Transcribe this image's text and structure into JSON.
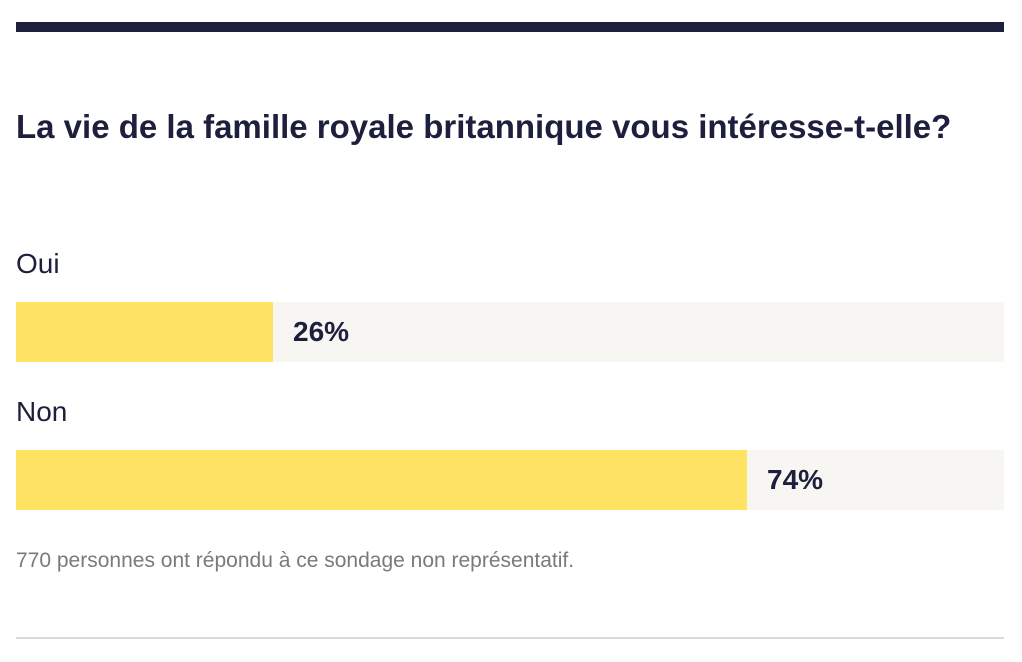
{
  "poll": {
    "question": "La vie de la famille royale britannique vous intéresse-t-elle?",
    "footnote": "770 personnes ont répondu à ce sondage non représentatif.",
    "colors": {
      "bar_fill": "#fee263",
      "bar_track": "#f7f6f2",
      "text": "#1d1f3c",
      "footnote": "#7a7a7a"
    }
  },
  "chart_data": {
    "type": "bar",
    "orientation": "horizontal",
    "title": "La vie de la famille royale britannique vous intéresse-t-elle?",
    "categories": [
      "Oui",
      "Non"
    ],
    "values": [
      26,
      74
    ],
    "value_labels": [
      "26%",
      "74%"
    ],
    "unit": "%",
    "xlim": [
      0,
      100
    ],
    "grid": false
  }
}
